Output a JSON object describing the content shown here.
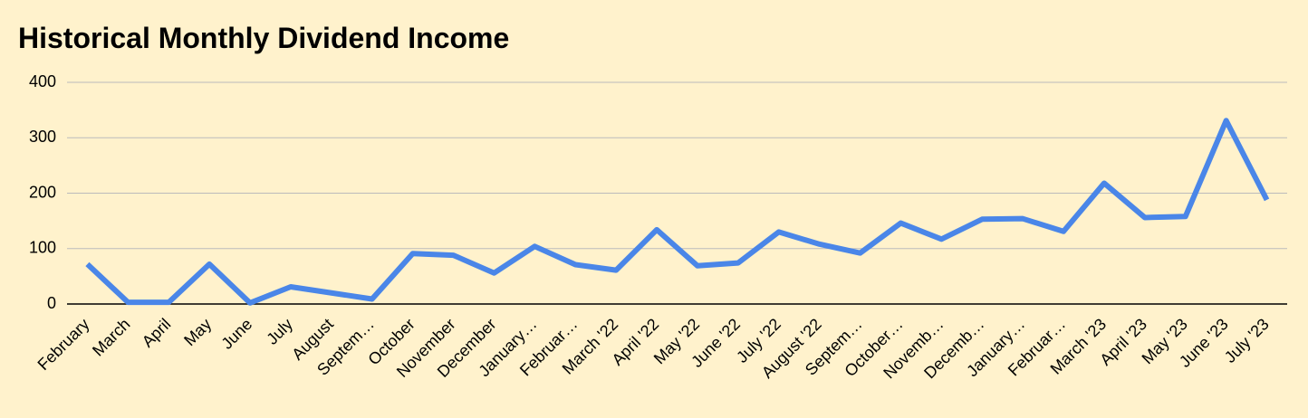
{
  "chart_data": {
    "type": "line",
    "title": "Historical Monthly Dividend Income",
    "categories": [
      "February",
      "March",
      "April",
      "May",
      "June",
      "July",
      "August",
      "Septem…",
      "October",
      "November",
      "December",
      "January…",
      "Februar…",
      "March '22",
      "April '22",
      "May '22",
      "June '22",
      "July '22",
      "August '22",
      "Septem…",
      "October…",
      "Novemb…",
      "Decemb…",
      "January…",
      "Februar…",
      "March '23",
      "April '23",
      "May '23",
      "June '23",
      "July '23"
    ],
    "values": [
      72,
      3,
      3,
      72,
      2,
      31,
      20,
      9,
      91,
      88,
      56,
      104,
      71,
      61,
      134,
      69,
      74,
      130,
      108,
      92,
      146,
      117,
      153,
      154,
      131,
      218,
      156,
      158,
      331,
      188
    ],
    "color": "#4a86e8",
    "ylim": [
      0,
      400
    ],
    "yticks": [
      0,
      100,
      200,
      300,
      400
    ],
    "grid": true
  }
}
